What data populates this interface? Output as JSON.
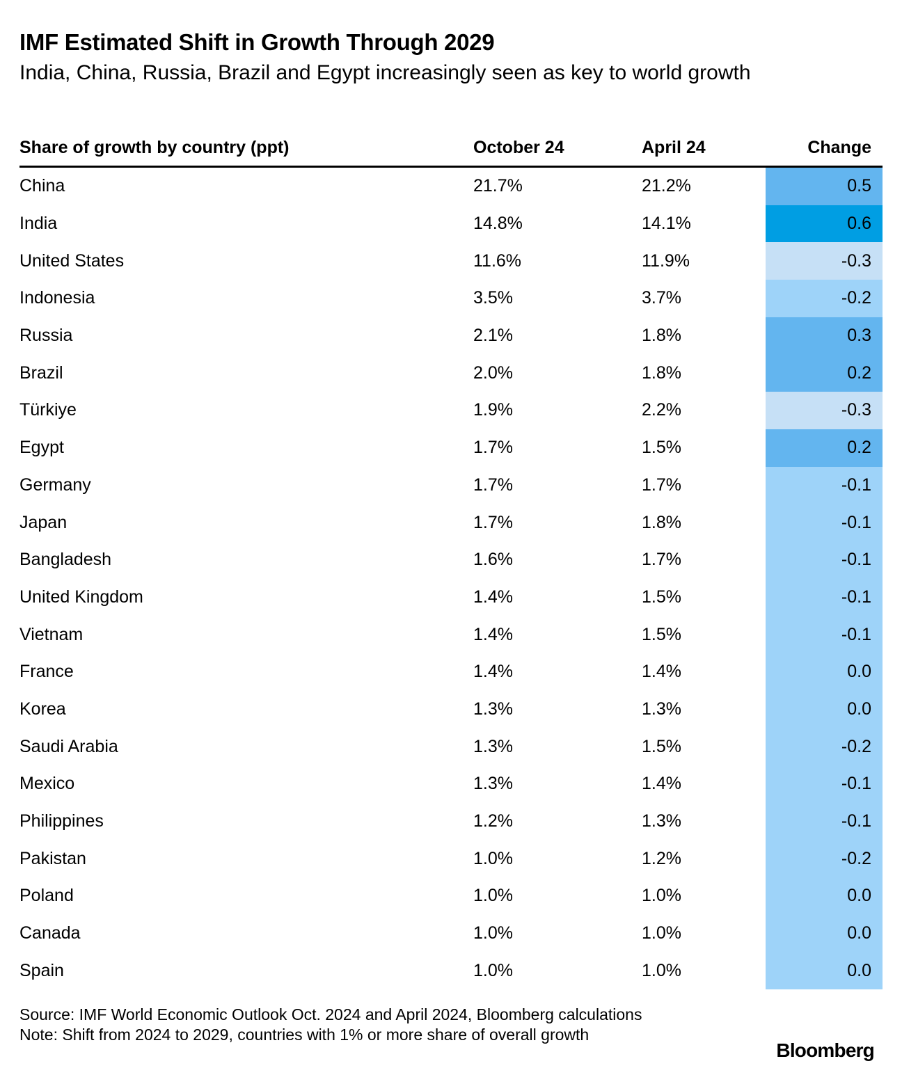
{
  "header": {
    "title": "IMF Estimated Shift in Growth Through 2029",
    "subtitle": "India, China, Russia, Brazil and Egypt increasingly seen as key to world growth"
  },
  "chart_data": {
    "type": "table",
    "columns": [
      "Share of growth by country (ppt)",
      "October 24",
      "April 24",
      "Change"
    ],
    "rows": [
      {
        "country": "China",
        "october_24": "21.7%",
        "april_24": "21.2%",
        "change": "0.5"
      },
      {
        "country": "India",
        "october_24": "14.8%",
        "april_24": "14.1%",
        "change": "0.6"
      },
      {
        "country": "United States",
        "october_24": "11.6%",
        "april_24": "11.9%",
        "change": "-0.3"
      },
      {
        "country": "Indonesia",
        "october_24": "3.5%",
        "april_24": "3.7%",
        "change": "-0.2"
      },
      {
        "country": "Russia",
        "october_24": "2.1%",
        "april_24": "1.8%",
        "change": "0.3"
      },
      {
        "country": "Brazil",
        "october_24": "2.0%",
        "april_24": "1.8%",
        "change": "0.2"
      },
      {
        "country": "Türkiye",
        "october_24": "1.9%",
        "april_24": "2.2%",
        "change": "-0.3"
      },
      {
        "country": "Egypt",
        "october_24": "1.7%",
        "april_24": "1.5%",
        "change": "0.2"
      },
      {
        "country": "Germany",
        "october_24": "1.7%",
        "april_24": "1.7%",
        "change": "-0.1"
      },
      {
        "country": "Japan",
        "october_24": "1.7%",
        "april_24": "1.8%",
        "change": "-0.1"
      },
      {
        "country": "Bangladesh",
        "october_24": "1.6%",
        "april_24": "1.7%",
        "change": "-0.1"
      },
      {
        "country": "United Kingdom",
        "october_24": "1.4%",
        "april_24": "1.5%",
        "change": "-0.1"
      },
      {
        "country": "Vietnam",
        "october_24": "1.4%",
        "april_24": "1.5%",
        "change": "-0.1"
      },
      {
        "country": "France",
        "october_24": "1.4%",
        "april_24": "1.4%",
        "change": "0.0"
      },
      {
        "country": "Korea",
        "october_24": "1.3%",
        "april_24": "1.3%",
        "change": "0.0"
      },
      {
        "country": "Saudi Arabia",
        "october_24": "1.3%",
        "april_24": "1.5%",
        "change": "-0.2"
      },
      {
        "country": "Mexico",
        "october_24": "1.3%",
        "april_24": "1.4%",
        "change": "-0.1"
      },
      {
        "country": "Philippines",
        "october_24": "1.2%",
        "april_24": "1.3%",
        "change": "-0.1"
      },
      {
        "country": "Pakistan",
        "october_24": "1.0%",
        "april_24": "1.2%",
        "change": "-0.2"
      },
      {
        "country": "Poland",
        "october_24": "1.0%",
        "april_24": "1.0%",
        "change": "0.0"
      },
      {
        "country": "Canada",
        "october_24": "1.0%",
        "april_24": "1.0%",
        "change": "0.0"
      },
      {
        "country": "Spain",
        "october_24": "1.0%",
        "april_24": "1.0%",
        "change": "0.0"
      }
    ]
  },
  "colors": {
    "strong_positive": "#009ee3",
    "positive": "#63b5ef",
    "neutral": "#9ed3f9",
    "light": "#c6e0f6"
  },
  "footer": {
    "source": "Source: IMF World Economic Outlook Oct. 2024 and April 2024, Bloomberg calculations",
    "note": "Note: Shift from 2024 to 2029, countries with 1% or more share of overall growth",
    "brand": "Bloomberg"
  }
}
